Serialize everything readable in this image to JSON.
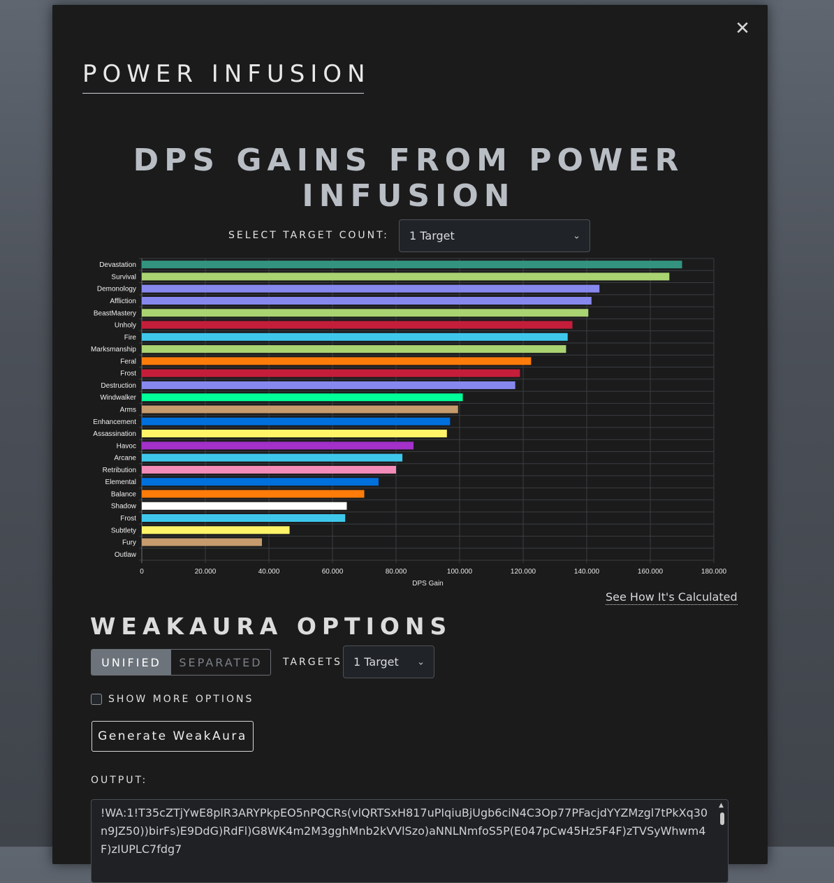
{
  "modal": {
    "title": "POWER INFUSION",
    "close_icon": "close-icon"
  },
  "chart_section": {
    "title": "DPS GAINS FROM POWER INFUSION",
    "target_count_label": "SELECT TARGET COUNT:",
    "target_count_value": "1 Target",
    "calc_link": "See How It's Calculated"
  },
  "chart_data": {
    "type": "bar",
    "orientation": "horizontal",
    "xlabel": "DPS Gain",
    "ylabel": "",
    "xlim": [
      0,
      180000
    ],
    "xticks": [
      "0",
      "20.000",
      "40.000",
      "60.000",
      "80.000",
      "100.000",
      "120.000",
      "140.000",
      "160.000",
      "180.000"
    ],
    "grid": true,
    "categories": [
      "Devastation",
      "Survival",
      "Demonology",
      "Affliction",
      "BeastMastery",
      "Unholy",
      "Fire",
      "Marksmanship",
      "Feral",
      "Frost",
      "Destruction",
      "Windwalker",
      "Arms",
      "Enhancement",
      "Assassination",
      "Havoc",
      "Arcane",
      "Retribution",
      "Elemental",
      "Balance",
      "Shadow",
      "Frost",
      "Subtlety",
      "Fury",
      "Outlaw"
    ],
    "values": [
      170000,
      166000,
      144000,
      141500,
      140500,
      135500,
      134000,
      133500,
      122500,
      119000,
      117500,
      101000,
      99500,
      97000,
      96000,
      85500,
      82000,
      80000,
      74500,
      70000,
      64500,
      64000,
      46500,
      37800,
      0
    ],
    "colors": [
      "#33937F",
      "#AAD372",
      "#8788EE",
      "#8788EE",
      "#AAD372",
      "#C41E3A",
      "#3FC7EB",
      "#AAD372",
      "#FF7C0A",
      "#C41E3A",
      "#8788EE",
      "#00FF98",
      "#C69B6D",
      "#0070DD",
      "#FFF468",
      "#A330C9",
      "#3FC7EB",
      "#F48CBA",
      "#0070DD",
      "#FF7C0A",
      "#FFFFFF",
      "#3FC7EB",
      "#FFF468",
      "#C69B6D",
      "#FFF468"
    ]
  },
  "weakaura": {
    "title": "WEAKAURA OPTIONS",
    "toggle_unified": "UNIFIED",
    "toggle_separated": "SEPARATED",
    "targets_label": "TARGETS:",
    "targets_value": "1 Target",
    "show_more_label": "SHOW MORE OPTIONS",
    "show_more_checked": false,
    "generate_label": "Generate WeakAura",
    "output_label": "OUTPUT:",
    "output_text": "!WA:1!T35cZTjYwE8plR3ARYPkpEO5nPQCRs(vlQRTSxH817uPIqiuBjUgb6ciN4C3Op77PFacjdYYZMzgl7tPkXq30n9JZ50))birFs)E9DdG)RdFl)G8WK4m2M3gghMnb2kVVlSzo)aNNLNmfoS5P(E047pCw45Hz5F4F)zTVSyWhwm4F)zIUPLC7fdg7"
  }
}
